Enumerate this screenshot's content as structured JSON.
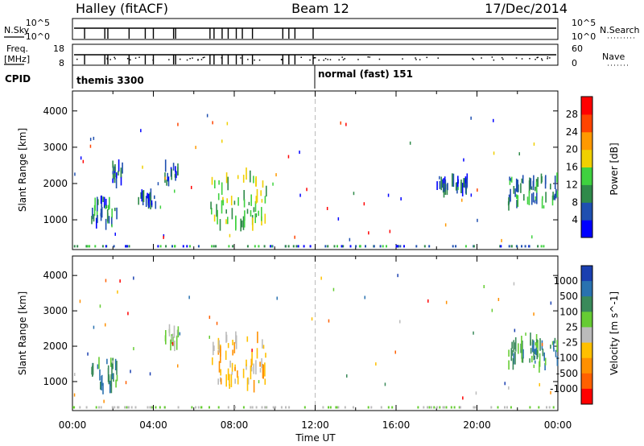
{
  "header": {
    "radar": "Halley (fitACF)",
    "beam": "Beam 12",
    "date": "17/Dec/2014"
  },
  "strips": {
    "nsky": {
      "label": "N.Sky",
      "ticks": [
        "10^5",
        "10^0"
      ]
    },
    "nsearch": {
      "label": "N.Search",
      "ticks": [
        "10^5",
        "10^0"
      ]
    },
    "freq": {
      "label": "Freq.",
      "unit": "[MHz]",
      "ticks": [
        "18",
        "8"
      ]
    },
    "nave": {
      "label": "Nave",
      "ticks": [
        "60",
        "0"
      ]
    },
    "cpid": {
      "label": "CPID",
      "modes": [
        "themis 3300",
        "normal (fast) 151"
      ]
    }
  },
  "chart_data": [
    {
      "type": "heatmap",
      "quantity": "power",
      "ylabel": "Slant Range [km]",
      "xlabel": "Time UT",
      "x_ticks": [
        "00:00",
        "04:00",
        "08:00",
        "12:00",
        "16:00",
        "20:00",
        "00:00"
      ],
      "x_range_hours": [
        0,
        24
      ],
      "y_ticks": [
        1000,
        2000,
        3000,
        4000
      ],
      "y_range_km": [
        180,
        4550
      ],
      "colorbar": {
        "label": "Power [dB]",
        "ticks": [
          "4",
          "8",
          "12",
          "16",
          "20",
          "24",
          "28"
        ],
        "range": [
          0,
          30
        ],
        "colors": [
          "#0000ff",
          "#1f4fb0",
          "#2f8a4a",
          "#3fd23f",
          "#f0d000",
          "#ff9900",
          "#ff4400",
          "#ff0000"
        ]
      },
      "echo_regions": [
        {
          "t_start": 0.8,
          "t_end": 2.2,
          "range_min": 800,
          "range_max": 1600,
          "value": 8
        },
        {
          "t_start": 1.9,
          "t_end": 2.6,
          "range_min": 2000,
          "range_max": 2600,
          "value": 6
        },
        {
          "t_start": 3.2,
          "t_end": 4.1,
          "range_min": 1400,
          "range_max": 1700,
          "value": 6
        },
        {
          "t_start": 4.5,
          "t_end": 5.2,
          "range_min": 2000,
          "range_max": 2500,
          "value": 6
        },
        {
          "t_start": 6.8,
          "t_end": 9.6,
          "range_min": 850,
          "range_max": 2300,
          "value": 14
        },
        {
          "t_start": 18.0,
          "t_end": 19.5,
          "range_min": 1800,
          "range_max": 2100,
          "value": 6
        },
        {
          "t_start": 21.5,
          "t_end": 24.0,
          "range_min": 1400,
          "range_max": 2200,
          "value": 10
        }
      ]
    },
    {
      "type": "heatmap",
      "quantity": "velocity",
      "ylabel": "Slant Range [km]",
      "xlabel": "Time UT",
      "x_ticks": [
        "00:00",
        "04:00",
        "08:00",
        "12:00",
        "16:00",
        "20:00",
        "00:00"
      ],
      "x_range_hours": [
        0,
        24
      ],
      "y_ticks": [
        1000,
        2000,
        3000,
        4000
      ],
      "y_range_km": [
        180,
        4550
      ],
      "colorbar": {
        "label": "Velocity [m s^-1]",
        "ticks": [
          "1000",
          "500",
          "100",
          "25",
          "-25",
          "-100",
          "-500",
          "-1000"
        ],
        "colors": [
          "#1a3fb0",
          "#2a72b0",
          "#3a8a5a",
          "#66cc33",
          "#bbbbbb",
          "#ffc000",
          "#ff9000",
          "#ff6000",
          "#ff0000"
        ]
      },
      "echo_regions": [
        {
          "t_start": 0.8,
          "t_end": 2.2,
          "range_min": 800,
          "range_max": 1600,
          "value": "100"
        },
        {
          "t_start": 4.5,
          "t_end": 5.2,
          "range_min": 2000,
          "range_max": 2500,
          "value": "25"
        },
        {
          "t_start": 6.8,
          "t_end": 9.6,
          "range_min": 850,
          "range_max": 2300,
          "value": "-100"
        },
        {
          "t_start": 21.5,
          "t_end": 24.0,
          "range_min": 1400,
          "range_max": 2200,
          "value": "100"
        }
      ]
    }
  ]
}
